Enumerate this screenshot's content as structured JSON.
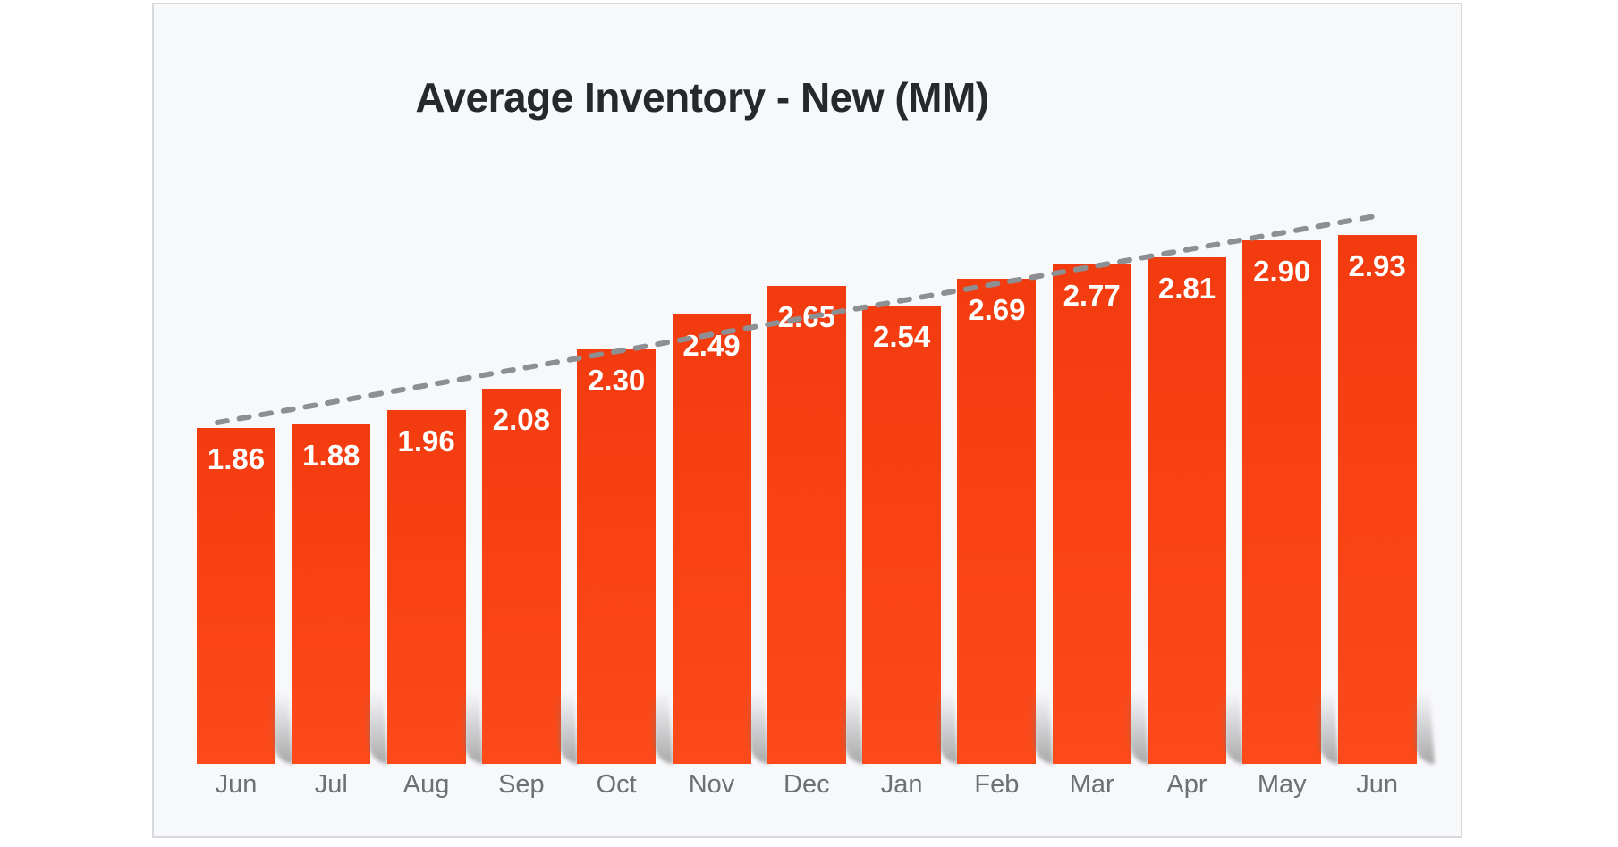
{
  "chart_data": {
    "type": "bar",
    "title": "Average Inventory - New (MM)",
    "categories": [
      "Jun",
      "Jul",
      "Aug",
      "Sep",
      "Oct",
      "Nov",
      "Dec",
      "Jan",
      "Feb",
      "Mar",
      "Apr",
      "May",
      "Jun"
    ],
    "values": [
      1.86,
      1.88,
      1.96,
      2.08,
      2.3,
      2.49,
      2.65,
      2.54,
      2.69,
      2.77,
      2.81,
      2.9,
      2.93
    ],
    "value_labels": [
      "1.86",
      "1.88",
      "1.96",
      "2.08",
      "2.30",
      "2.49",
      "2.65",
      "2.54",
      "2.69",
      "2.77",
      "2.81",
      "2.90",
      "2.93"
    ],
    "xlabel": "",
    "ylabel": "",
    "ylim": [
      0,
      3.2
    ],
    "grid": false,
    "legend": false,
    "value_labels_position": "inside-top",
    "trend_line": {
      "style": "dashed",
      "direction": "rising",
      "drawn_over_bars": true
    }
  },
  "colors": {
    "bar": "#f94314",
    "bar_gradient_top": "#f23c10",
    "bar_gradient_bottom": "#fc4a1a",
    "value_label": "#ffffff",
    "axis_label": "#6d7075",
    "title": "#25282c",
    "trend_line": "#8d8f92",
    "card_background": "#f7f8fa",
    "card_border": "#d7d9dc",
    "page_background": "#ffffff"
  }
}
